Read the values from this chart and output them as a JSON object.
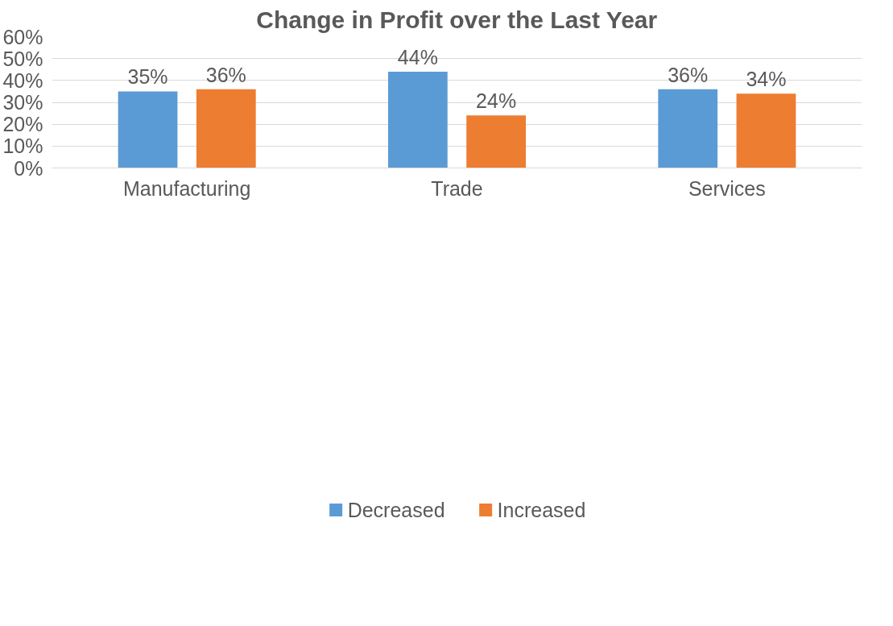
{
  "chart_data": {
    "type": "bar",
    "title": "Change in Profit over the Last Year",
    "categories": [
      "Manufacturing",
      "Trade",
      "Services"
    ],
    "series": [
      {
        "name": "Decreased",
        "color": "#5b9bd5",
        "values": [
          35,
          44,
          36
        ],
        "value_labels": [
          "35%",
          "44%",
          "36%"
        ]
      },
      {
        "name": "Increased",
        "color": "#ed7d31",
        "values": [
          36,
          24,
          34
        ],
        "value_labels": [
          "36%",
          "24%",
          "34%"
        ]
      }
    ],
    "ylim": [
      0,
      60
    ],
    "yticks": [
      {
        "value": 0,
        "label": "0%"
      },
      {
        "value": 10,
        "label": "10%"
      },
      {
        "value": 20,
        "label": "20%"
      },
      {
        "value": 30,
        "label": "30%"
      },
      {
        "value": 40,
        "label": "40%"
      },
      {
        "value": 50,
        "label": "50%"
      },
      {
        "value": 60,
        "label": "60%"
      }
    ],
    "grid": "y",
    "legend": "bottom"
  }
}
